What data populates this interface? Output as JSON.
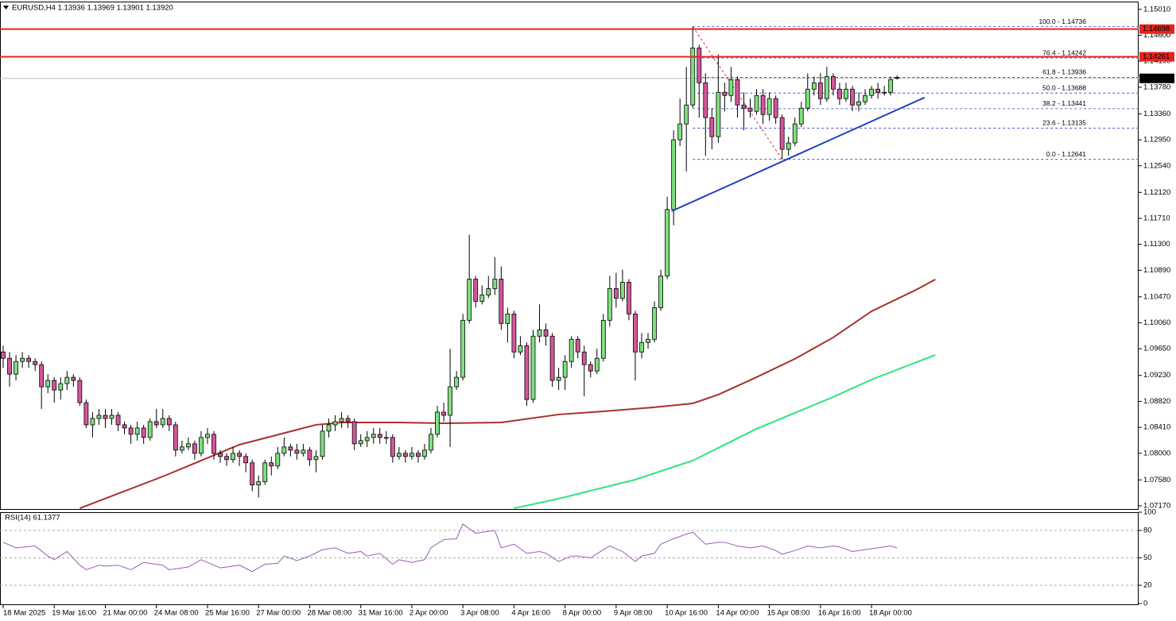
{
  "chart_data": {
    "type": "candlestick",
    "title": "EURUSD,H4  1.13936 1.13969 1.13901 1.13920",
    "categories": [
      "18 Mar 2025",
      null,
      null,
      null,
      null,
      null,
      null,
      null,
      "19 Mar 16:00",
      null,
      null,
      null,
      null,
      null,
      null,
      null,
      "21 Mar 00:00",
      null,
      null,
      null,
      null,
      null,
      null,
      null,
      "24 Mar 08:00",
      null,
      null,
      null,
      null,
      null,
      null,
      null,
      "25 Mar 16:00",
      null,
      null,
      null,
      null,
      null,
      null,
      null,
      "27 Mar 00:00",
      null,
      null,
      null,
      null,
      null,
      null,
      null,
      "28 Mar 08:00",
      null,
      null,
      null,
      null,
      null,
      null,
      null,
      "31 Mar 16:00",
      null,
      null,
      null,
      null,
      null,
      null,
      null,
      "2 Apr 00:00",
      null,
      null,
      null,
      null,
      null,
      null,
      null,
      "3 Apr 08:00",
      null,
      null,
      null,
      null,
      null,
      null,
      null,
      "4 Apr 16:00",
      null,
      null,
      null,
      null,
      null,
      null,
      null,
      "8 Apr 00:00",
      null,
      null,
      null,
      null,
      null,
      null,
      null,
      "9 Apr 08:00",
      null,
      null,
      null,
      null,
      null,
      null,
      null,
      "10 Apr 16:00",
      null,
      null,
      null,
      null,
      null,
      null,
      null,
      "14 Apr 00:00",
      null,
      null,
      null,
      null,
      null,
      null,
      null,
      "15 Apr 08:00",
      null,
      null,
      null,
      null,
      null,
      null,
      null,
      "16 Apr 16:00",
      null,
      null,
      null,
      null,
      null,
      null,
      null,
      "18 Apr 00:00",
      null,
      null,
      null,
      null
    ],
    "open": [
      1.096,
      1.095,
      1.0925,
      1.0945,
      1.095,
      1.0945,
      1.094,
      1.0905,
      1.0915,
      1.09,
      1.091,
      1.092,
      1.0915,
      1.088,
      1.0845,
      1.0855,
      1.086,
      1.0855,
      1.086,
      1.0845,
      1.084,
      1.083,
      1.084,
      1.0825,
      1.085,
      1.0845,
      1.0855,
      1.0845,
      1.0805,
      1.081,
      1.0815,
      1.08,
      1.0825,
      1.083,
      1.08,
      1.0795,
      1.079,
      1.08,
      1.0795,
      1.0785,
      1.075,
      1.0755,
      1.0785,
      1.078,
      1.08,
      1.081,
      1.0805,
      1.08,
      1.0805,
      1.079,
      1.0795,
      1.0835,
      1.0845,
      1.085,
      1.0855,
      1.085,
      1.0815,
      1.082,
      1.0825,
      1.083,
      1.0825,
      1.0825,
      1.0795,
      1.08,
      1.0795,
      1.08,
      1.0795,
      1.0805,
      1.083,
      1.0865,
      1.086,
      1.0905,
      1.092,
      1.101,
      1.1075,
      1.104,
      1.105,
      1.106,
      1.1075,
      1.1005,
      1.102,
      1.096,
      1.097,
      1.0885,
      1.0985,
      1.0995,
      1.0985,
      1.0915,
      1.092,
      1.0945,
      1.098,
      1.096,
      1.094,
      1.093,
      1.095,
      1.101,
      1.106,
      1.1045,
      1.107,
      1.102,
      1.096,
      1.0975,
      1.098,
      1.103,
      1.108,
      1.1185,
      1.1295,
      1.132,
      1.135,
      1.144,
      1.1385,
      1.133,
      1.13,
      1.137,
      1.1365,
      1.139,
      1.135,
      1.1345,
      1.134,
      1.1365,
      1.1335,
      1.136,
      1.133,
      1.128,
      1.129,
      1.132,
      1.1345,
      1.1375,
      1.1385,
      1.136,
      1.1395,
      1.1375,
      1.136,
      1.1375,
      1.135,
      1.1355,
      1.1365,
      1.1375,
      1.137,
      1.137,
      1.13936
    ],
    "high": [
      1.097,
      1.096,
      1.0955,
      1.096,
      1.0955,
      1.095,
      1.0945,
      1.0925,
      1.092,
      1.092,
      1.093,
      1.0925,
      1.092,
      1.0885,
      1.0865,
      1.087,
      1.087,
      1.087,
      1.0865,
      1.085,
      1.0845,
      1.085,
      1.0845,
      1.0855,
      1.087,
      1.087,
      1.086,
      1.085,
      1.082,
      1.0825,
      1.082,
      1.0835,
      1.084,
      1.0835,
      1.0805,
      1.08,
      1.081,
      1.0805,
      1.08,
      1.079,
      1.0765,
      1.079,
      1.0795,
      1.081,
      1.0825,
      1.0815,
      1.0815,
      1.0815,
      1.081,
      1.0805,
      1.0845,
      1.0855,
      1.086,
      1.0865,
      1.086,
      1.0855,
      1.083,
      1.0835,
      1.084,
      1.084,
      1.0835,
      1.083,
      1.081,
      1.0805,
      1.081,
      1.0805,
      1.0815,
      1.084,
      1.0875,
      1.088,
      1.0965,
      1.093,
      1.102,
      1.1145,
      1.108,
      1.1065,
      1.108,
      1.111,
      1.1095,
      1.103,
      1.1025,
      1.0985,
      1.0975,
      1.0995,
      1.1035,
      1.1005,
      1.099,
      1.0935,
      1.0955,
      1.0985,
      1.0985,
      1.097,
      1.0945,
      1.0965,
      1.102,
      1.108,
      1.1085,
      1.109,
      1.1075,
      1.1025,
      1.099,
      1.099,
      1.104,
      1.109,
      1.1205,
      1.131,
      1.136,
      1.141,
      1.14736,
      1.1445,
      1.14,
      1.1345,
      1.143,
      1.1385,
      1.141,
      1.1395,
      1.137,
      1.136,
      1.1375,
      1.1375,
      1.137,
      1.1365,
      1.1335,
      1.13,
      1.133,
      1.1355,
      1.14,
      1.1395,
      1.14,
      1.141,
      1.14,
      1.1385,
      1.1385,
      1.138,
      1.137,
      1.1375,
      1.138,
      1.1385,
      1.138,
      1.1395,
      1.13969
    ],
    "low": [
      1.0935,
      1.0905,
      1.0915,
      1.0935,
      1.0935,
      1.093,
      1.087,
      1.0895,
      1.088,
      1.0885,
      1.09,
      1.0905,
      1.0875,
      1.084,
      1.0825,
      1.0845,
      1.084,
      1.0845,
      1.0835,
      1.083,
      1.0815,
      1.082,
      1.0815,
      1.082,
      1.084,
      1.084,
      1.0835,
      1.0795,
      1.08,
      1.0805,
      1.079,
      1.0795,
      1.0815,
      1.079,
      1.0785,
      1.078,
      1.0785,
      1.078,
      1.077,
      1.074,
      1.073,
      1.075,
      1.0765,
      1.0775,
      1.0795,
      1.0795,
      1.079,
      1.0795,
      1.078,
      1.077,
      1.079,
      1.0825,
      1.0835,
      1.084,
      1.084,
      1.0805,
      1.081,
      1.081,
      1.0815,
      1.0815,
      1.0815,
      1.0785,
      1.079,
      1.0785,
      1.079,
      1.0785,
      1.079,
      1.08,
      1.0825,
      1.085,
      1.081,
      1.09,
      1.0915,
      1.1005,
      1.103,
      1.1035,
      1.1045,
      1.105,
      1.0995,
      1.0975,
      1.095,
      1.0955,
      1.0875,
      1.088,
      1.0975,
      1.097,
      1.0905,
      1.09,
      1.09,
      1.0935,
      1.095,
      1.089,
      1.092,
      1.0925,
      1.0945,
      1.1,
      1.103,
      1.104,
      1.101,
      1.0915,
      1.095,
      1.0965,
      1.0975,
      1.1025,
      1.1075,
      1.116,
      1.1285,
      1.1245,
      1.1345,
      1.133,
      1.127,
      1.128,
      1.129,
      1.134,
      1.1355,
      1.133,
      1.131,
      1.133,
      1.1335,
      1.132,
      1.1325,
      1.132,
      1.12641,
      1.127,
      1.1285,
      1.1315,
      1.134,
      1.1365,
      1.135,
      1.1355,
      1.1365,
      1.135,
      1.1355,
      1.134,
      1.134,
      1.135,
      1.136,
      1.136,
      1.1365,
      1.1365,
      1.13901
    ],
    "close": [
      1.095,
      1.0925,
      1.0945,
      1.095,
      1.0945,
      1.094,
      1.0905,
      1.0915,
      1.09,
      1.091,
      1.092,
      1.0915,
      1.088,
      1.0845,
      1.0855,
      1.086,
      1.0855,
      1.086,
      1.0845,
      1.084,
      1.083,
      1.084,
      1.0825,
      1.085,
      1.0845,
      1.0855,
      1.0845,
      1.0805,
      1.081,
      1.0815,
      1.08,
      1.0825,
      1.083,
      1.08,
      1.0795,
      1.079,
      1.08,
      1.0795,
      1.0785,
      1.075,
      1.0755,
      1.0785,
      1.078,
      1.08,
      1.081,
      1.0805,
      1.08,
      1.0805,
      1.079,
      1.0795,
      1.0835,
      1.0845,
      1.085,
      1.0855,
      1.085,
      1.0815,
      1.082,
      1.0825,
      1.083,
      1.0825,
      1.0825,
      1.0795,
      1.08,
      1.0795,
      1.08,
      1.0795,
      1.0805,
      1.083,
      1.0865,
      1.086,
      1.0905,
      1.092,
      1.101,
      1.1075,
      1.104,
      1.105,
      1.106,
      1.1075,
      1.1005,
      1.102,
      1.096,
      1.097,
      1.0885,
      1.0985,
      1.0995,
      1.0985,
      1.0915,
      1.092,
      1.0945,
      1.098,
      1.096,
      1.094,
      1.093,
      1.095,
      1.101,
      1.106,
      1.1045,
      1.107,
      1.102,
      1.096,
      1.0975,
      1.098,
      1.103,
      1.108,
      1.1185,
      1.1295,
      1.132,
      1.135,
      1.144,
      1.1385,
      1.133,
      1.13,
      1.137,
      1.1365,
      1.139,
      1.135,
      1.1345,
      1.134,
      1.1365,
      1.1335,
      1.136,
      1.133,
      1.128,
      1.129,
      1.132,
      1.1345,
      1.1375,
      1.1385,
      1.136,
      1.1395,
      1.1375,
      1.136,
      1.1375,
      1.135,
      1.1355,
      1.1365,
      1.1375,
      1.137,
      1.137,
      1.139,
      1.1392
    ],
    "up_color": "#7ee07e",
    "down_color": "#d6569a",
    "ylim": [
      1.0712,
      1.1512
    ],
    "yticks": [
      {
        "value": 1.1501,
        "label": "1.15010"
      },
      {
        "value": 1.146,
        "label": "1.14600"
      },
      {
        "value": 1.1419,
        "label": "1.14190"
      },
      {
        "value": 1.1378,
        "label": "1.13780"
      },
      {
        "value": 1.1336,
        "label": "1.13360"
      },
      {
        "value": 1.1295,
        "label": "1.12950"
      },
      {
        "value": 1.1254,
        "label": "1.12540"
      },
      {
        "value": 1.1212,
        "label": "1.12120"
      },
      {
        "value": 1.1171,
        "label": "1.11710"
      },
      {
        "value": 1.113,
        "label": "1.11300"
      },
      {
        "value": 1.1089,
        "label": "1.10890"
      },
      {
        "value": 1.1047,
        "label": "1.10470"
      },
      {
        "value": 1.1006,
        "label": "1.10060"
      },
      {
        "value": 1.0965,
        "label": "1.09650"
      },
      {
        "value": 1.0923,
        "label": "1.09230"
      },
      {
        "value": 1.0882,
        "label": "1.08820"
      },
      {
        "value": 1.0841,
        "label": "1.08410"
      },
      {
        "value": 1.08,
        "label": "1.08000"
      },
      {
        "value": 1.0758,
        "label": "1.07580"
      },
      {
        "value": 1.0717,
        "label": "1.07170"
      }
    ],
    "moving_averages": [
      {
        "color": "#a8302c",
        "x": [
          12,
          25,
          37,
          49,
          53,
          62,
          69,
          78,
          87,
          94,
          102,
          108,
          112,
          118,
          124,
          130,
          136,
          143,
          146
        ],
        "values": [
          1.07132,
          1.07634,
          1.08136,
          1.0845,
          1.08487,
          1.08487,
          1.08475,
          1.08487,
          1.08613,
          1.08663,
          1.08726,
          1.08788,
          1.08926,
          1.09202,
          1.09491,
          1.09829,
          1.10243,
          1.10582,
          1.10745
        ]
      },
      {
        "color": "#2ee57c",
        "x": [
          80,
          87,
          99,
          108,
          118,
          130,
          136,
          146
        ],
        "values": [
          1.07132,
          1.07283,
          1.07584,
          1.07885,
          1.08387,
          1.08889,
          1.09164,
          1.09553
        ]
      }
    ],
    "trendline": {
      "color": "#1f3fbf",
      "x": [
        104.7,
        144.3
      ],
      "values": [
        1.11824,
        1.13618
      ]
    },
    "fib_retracement": {
      "x": [
        108,
        122
      ],
      "line_color": "#2a3fc8",
      "diagonal_color": "#e0302a",
      "levels": [
        {
          "value": 1.14736,
          "label": "100.0 - 1.14736"
        },
        {
          "value": 1.14242,
          "label": "76.4 - 1.14242"
        },
        {
          "value": 1.13936,
          "label": "61.8 - 1.13936"
        },
        {
          "value": 1.13688,
          "label": "50.0 - 1.13688"
        },
        {
          "value": 1.13441,
          "label": "38.2 - 1.13441"
        },
        {
          "value": 1.13135,
          "label": "23.6 - 1.13135"
        },
        {
          "value": 1.12641,
          "label": "0.0 - 1.12641"
        }
      ]
    },
    "hlines": [
      1.14698,
      1.14261
    ],
    "hline_color": "#e8231c",
    "last_price": {
      "value": 1.1392,
      "label": "1.13920"
    },
    "rsi": {
      "type": "line",
      "title": "RSI(14) 61.1377",
      "color": "#9a5cb4",
      "x": [
        0,
        2,
        5,
        7,
        8,
        10,
        12,
        13,
        15,
        16,
        18,
        20,
        22,
        25,
        26,
        29,
        31,
        33,
        34,
        37,
        39,
        41,
        43,
        44,
        46,
        48,
        50,
        52,
        54,
        56,
        57,
        59,
        61,
        62,
        64,
        66,
        67,
        69,
        71,
        72,
        74,
        75,
        77,
        78,
        80,
        82,
        84,
        85,
        87,
        89,
        90,
        92,
        94,
        95,
        97,
        99,
        100,
        102,
        103,
        105,
        107,
        108,
        110,
        112,
        113,
        115,
        117,
        119,
        121,
        122,
        124,
        126,
        128,
        130,
        131,
        133,
        135,
        137,
        139,
        140
      ],
      "values": [
        67,
        61,
        63,
        52,
        48,
        57,
        42,
        37,
        42,
        41,
        42,
        37,
        45,
        42,
        37,
        40,
        48,
        42,
        39,
        42,
        35,
        43,
        44,
        52,
        47,
        52,
        59,
        61,
        55,
        57,
        52,
        55,
        43,
        48,
        45,
        48,
        61,
        70,
        71,
        87,
        77,
        78,
        80,
        61,
        65,
        55,
        57,
        55,
        46,
        52,
        52,
        50,
        59,
        63,
        57,
        46,
        52,
        55,
        65,
        71,
        76,
        78,
        65,
        67,
        67,
        63,
        61,
        63,
        58,
        54,
        58,
        63,
        61,
        63,
        62,
        57,
        59,
        61,
        63,
        61
      ],
      "ylim": [
        0,
        100
      ],
      "yticks": [
        100,
        80,
        50,
        20,
        0
      ],
      "levels": [
        80,
        50,
        20
      ]
    }
  }
}
